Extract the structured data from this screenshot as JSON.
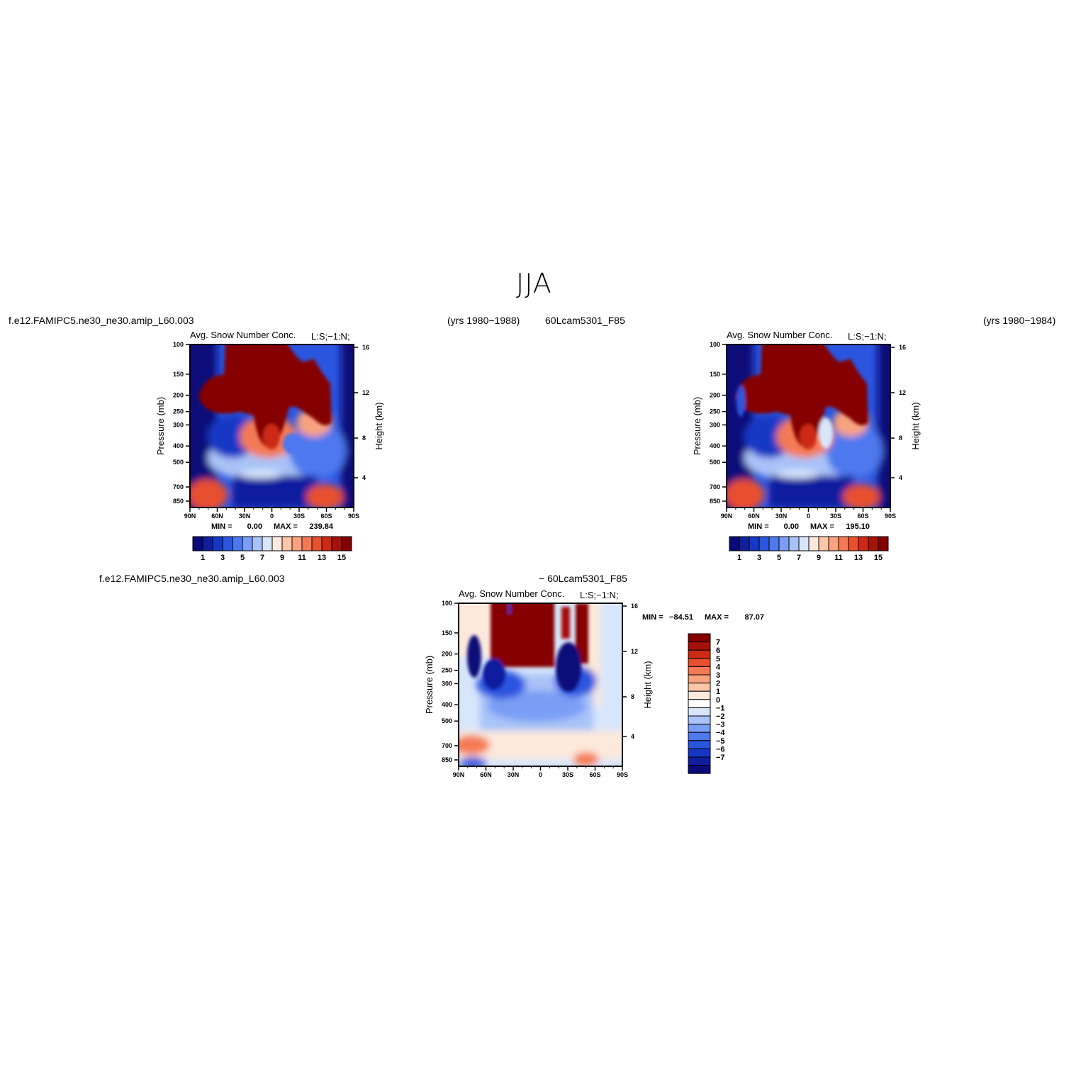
{
  "page": {
    "title": "JJA",
    "left_case": "f.e12.FAMIPC5.ne30_ne30.amip_L60.003",
    "left_years": "(yrs 1980−1988)",
    "right_case": "60Lcam5301_F85",
    "right_years": "(yrs 1980−1984)",
    "diff_case_left": "f.e12.FAMIPC5.ne30_ne30.amip_L60.003",
    "diff_case_right": "− 60Lcam5301_F85"
  },
  "palettes": {
    "abs": [
      "#0a0a7a",
      "#0f1f9e",
      "#1537c4",
      "#2a55de",
      "#4d78ee",
      "#7a9ef5",
      "#a9c3f8",
      "#d8e6fb",
      "#fde9dc",
      "#fcc6a8",
      "#f9a27f",
      "#f47a55",
      "#e8502f",
      "#cc2a15",
      "#a6110a",
      "#850101"
    ],
    "diff": [
      "#0a0a7a",
      "#0f1f9e",
      "#1537c4",
      "#2a55de",
      "#4d78ee",
      "#7a9ef5",
      "#a9c3f8",
      "#d8e6fb",
      "#ffffff",
      "#fde9dc",
      "#fcc6a8",
      "#f9a27f",
      "#f47a55",
      "#e8502f",
      "#cc2a15",
      "#a6110a",
      "#850101"
    ]
  },
  "chart_data": [
    {
      "type": "heatmap",
      "panel": "left",
      "title": "Avg. Snow Number Conc.",
      "units": "L:S;−1:N;",
      "ylabel": "Pressure (mb)",
      "y2label": "Height (km)",
      "x_ticks": [
        "90N",
        "60N",
        "30N",
        "0",
        "30S",
        "60S",
        "90S"
      ],
      "y_ticks": [
        "100",
        "150",
        "200",
        "250",
        "300",
        "400",
        "500",
        "700",
        "850"
      ],
      "y2_ticks": [
        "16",
        "12",
        "8",
        "4"
      ],
      "stats": {
        "min_label": "MIN =",
        "min": "0.00",
        "max_label": "MAX =",
        "max": "239.84"
      },
      "colorbar_labels": [
        "1",
        "3",
        "5",
        "7",
        "9",
        "11",
        "13",
        "15"
      ]
    },
    {
      "type": "heatmap",
      "panel": "right",
      "title": "Avg. Snow Number Conc.",
      "units": "L:S;−1:N;",
      "ylabel": "Pressure (mb)",
      "y2label": "Height (km)",
      "x_ticks": [
        "90N",
        "60N",
        "30N",
        "0",
        "30S",
        "60S",
        "90S"
      ],
      "y_ticks": [
        "100",
        "150",
        "200",
        "250",
        "300",
        "400",
        "500",
        "700",
        "850"
      ],
      "y2_ticks": [
        "16",
        "12",
        "8",
        "4"
      ],
      "stats": {
        "min_label": "MIN =",
        "min": "0.00",
        "max_label": "MAX =",
        "max": "195.10"
      },
      "colorbar_labels": [
        "1",
        "3",
        "5",
        "7",
        "9",
        "11",
        "13",
        "15"
      ]
    },
    {
      "type": "heatmap",
      "panel": "diff",
      "title": "Avg. Snow Number Conc.",
      "units": "L:S;−1:N;",
      "ylabel": "Pressure (mb)",
      "y2label": "Height (km)",
      "x_ticks": [
        "90N",
        "60N",
        "30N",
        "0",
        "30S",
        "60S",
        "90S"
      ],
      "y_ticks": [
        "100",
        "150",
        "200",
        "250",
        "300",
        "400",
        "500",
        "700",
        "850"
      ],
      "y2_ticks": [
        "16",
        "12",
        "8",
        "4"
      ],
      "stats": {
        "min_label": "MIN =",
        "min": "−84.51",
        "max_label": "MAX =",
        "max": "87.07"
      },
      "colorbar_labels": [
        "7",
        "6",
        "5",
        "4",
        "3",
        "2",
        "1",
        "0",
        "−1",
        "−2",
        "−3",
        "−4",
        "−5",
        "−6",
        "−7"
      ]
    }
  ]
}
